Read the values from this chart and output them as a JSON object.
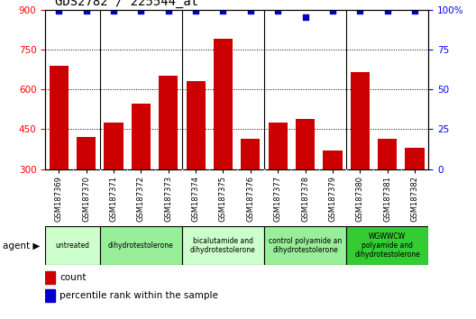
{
  "title": "GDS2782 / 225544_at",
  "samples": [
    "GSM187369",
    "GSM187370",
    "GSM187371",
    "GSM187372",
    "GSM187373",
    "GSM187374",
    "GSM187375",
    "GSM187376",
    "GSM187377",
    "GSM187378",
    "GSM187379",
    "GSM187380",
    "GSM187381",
    "GSM187382"
  ],
  "counts": [
    690,
    420,
    475,
    545,
    650,
    630,
    790,
    415,
    475,
    490,
    370,
    665,
    415,
    380
  ],
  "percentiles": [
    99,
    99,
    99,
    99,
    99,
    99,
    99,
    99,
    99,
    95,
    99,
    99,
    99,
    99
  ],
  "bar_color": "#cc0000",
  "dot_color": "#0000cc",
  "ylim_left": [
    300,
    900
  ],
  "ylim_right": [
    0,
    100
  ],
  "yticks_left": [
    300,
    450,
    600,
    750,
    900
  ],
  "yticks_right": [
    0,
    25,
    50,
    75,
    100
  ],
  "groups": [
    {
      "label": "untreated",
      "indices": [
        0,
        1
      ],
      "color": "#ccffcc"
    },
    {
      "label": "dihydrotestolerone",
      "indices": [
        2,
        3,
        4
      ],
      "color": "#99ee99"
    },
    {
      "label": "bicalutamide and\ndihydrotestolerone",
      "indices": [
        5,
        6,
        7
      ],
      "color": "#ccffcc"
    },
    {
      "label": "control polyamide an\ndihydrotestolerone",
      "indices": [
        8,
        9,
        10
      ],
      "color": "#99ee99"
    },
    {
      "label": "WGWWCW\npolyamide and\ndihydrotestolerone",
      "indices": [
        11,
        12,
        13
      ],
      "color": "#33cc33"
    }
  ],
  "legend_count_label": "count",
  "legend_pct_label": "percentile rank within the sample",
  "xtick_bg": "#cccccc"
}
